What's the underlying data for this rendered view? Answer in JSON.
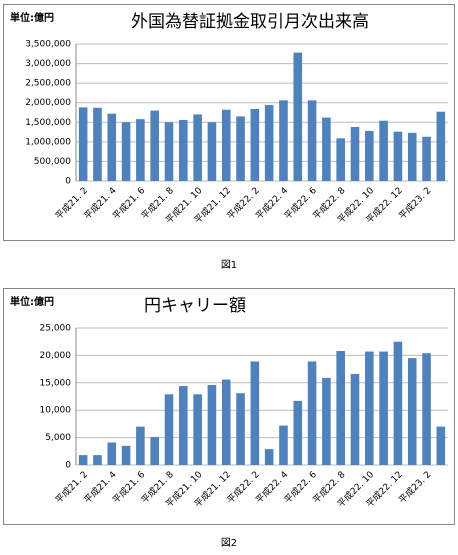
{
  "chart_data": [
    {
      "type": "bar",
      "title": "外国為替証拠金取引月次出来高",
      "unit": "単位:億円",
      "caption": "図1",
      "categories": [
        "平成21. 2",
        null,
        "平成21. 4",
        null,
        "平成21. 6",
        null,
        "平成21. 8",
        null,
        "平成21. 10",
        null,
        "平成21. 12",
        null,
        "平成22. 2",
        null,
        "平成22. 4",
        null,
        "平成22. 6",
        null,
        "平成22. 8",
        null,
        "平成22. 10",
        null,
        "平成22. 12",
        null,
        "平成23. 2",
        null
      ],
      "values": [
        1880000,
        1870000,
        1720000,
        1500000,
        1580000,
        1800000,
        1500000,
        1560000,
        1700000,
        1500000,
        1820000,
        1650000,
        1840000,
        1940000,
        2060000,
        3280000,
        2060000,
        1620000,
        1090000,
        1380000,
        1280000,
        1540000,
        1260000,
        1230000,
        1130000,
        1770000
      ],
      "color": "#4f81bd",
      "grid": true,
      "ylim": [
        0,
        3500000
      ],
      "yticks": [
        0,
        {
          "value": 500000,
          "label": "500,000"
        },
        {
          "value": 1000000,
          "label": "1,000,000"
        },
        {
          "value": 1500000,
          "label": "1,500,000"
        },
        {
          "value": 2000000,
          "label": "2,000,000"
        },
        {
          "value": 2500000,
          "label": "2,500,000"
        },
        {
          "value": 3000000,
          "label": "3,000,000"
        },
        {
          "value": 3500000,
          "label": "3,500,000"
        }
      ]
    },
    {
      "type": "bar",
      "title": "円キャリー額",
      "unit": "単位:億円",
      "caption": "図2",
      "categories": [
        "平成21. 2",
        null,
        "平成21. 4",
        null,
        "平成21. 6",
        null,
        "平成21. 8",
        null,
        "平成21. 10",
        null,
        "平成21. 12",
        null,
        "平成22. 2",
        null,
        "平成22. 4",
        null,
        "平成22. 6",
        null,
        "平成22. 8",
        null,
        "平成22. 10",
        null,
        "平成22. 12",
        null,
        "平成23. 2",
        null
      ],
      "values": [
        1800,
        1800,
        4100,
        3500,
        7000,
        5100,
        12900,
        14400,
        12900,
        14600,
        15600,
        13100,
        18900,
        2900,
        7200,
        11700,
        18900,
        15900,
        20800,
        16600,
        20700,
        20700,
        22500,
        19500,
        20400,
        7000
      ],
      "color": "#4f81bd",
      "grid": true,
      "ylim": [
        0,
        25000
      ],
      "yticks": [
        0,
        {
          "value": 5000,
          "label": "5,000"
        },
        {
          "value": 10000,
          "label": "10,000"
        },
        {
          "value": 15000,
          "label": "15,000"
        },
        {
          "value": 20000,
          "label": "20,000"
        },
        {
          "value": 25000,
          "label": "25,000"
        }
      ]
    }
  ]
}
